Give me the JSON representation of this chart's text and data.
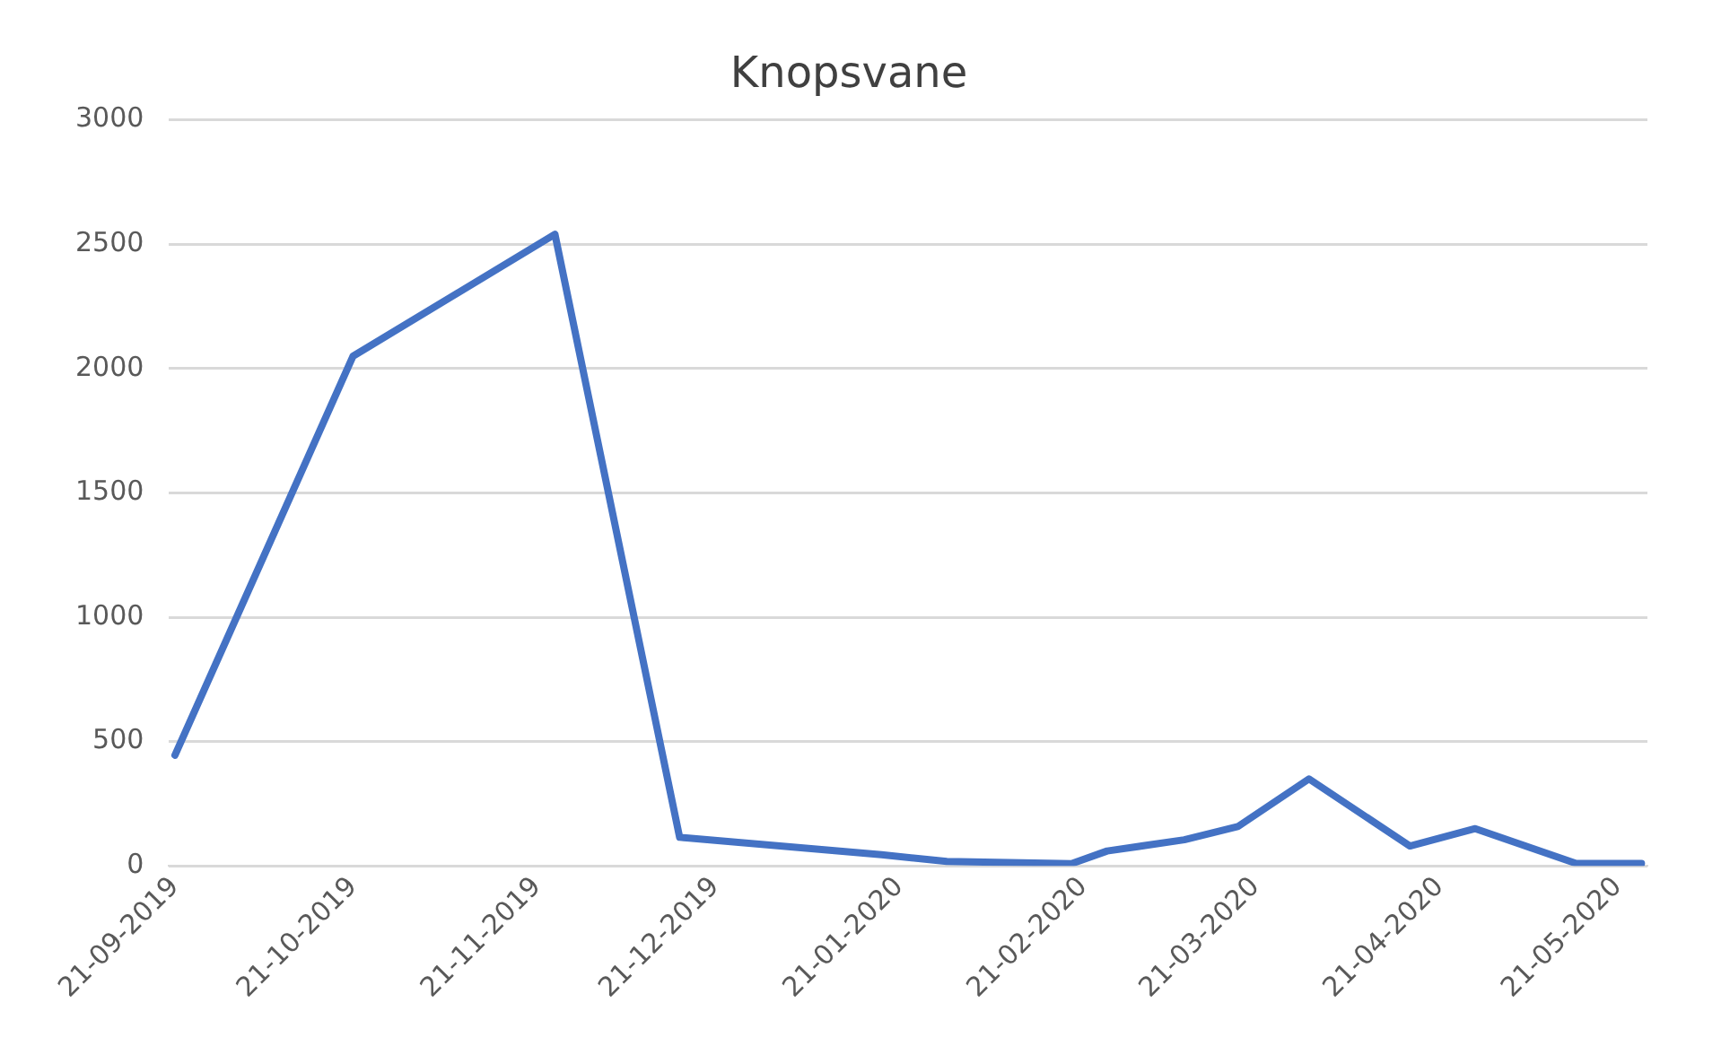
{
  "chart_data": {
    "type": "line",
    "title": "Knopsvane",
    "x": [
      "2019-09-21",
      "2019-10-21",
      "2019-11-24",
      "2019-12-15",
      "2020-01-18",
      "2020-01-29",
      "2020-02-19",
      "2020-02-25",
      "2020-03-09",
      "2020-03-18",
      "2020-03-30",
      "2020-04-16",
      "2020-04-27",
      "2020-05-14",
      "2020-05-25"
    ],
    "series": [
      {
        "color": "#4472c4",
        "values": [
          445,
          2050,
          2540,
          115,
          45,
          18,
          9,
          60,
          105,
          158,
          350,
          80,
          150,
          10,
          10
        ]
      }
    ],
    "xlim": [
      "2019-09-20",
      "2020-05-26"
    ],
    "xticks": [
      {
        "value": "2019-09-21",
        "label": "21-09-2019"
      },
      {
        "value": "2019-10-21",
        "label": "21-10-2019"
      },
      {
        "value": "2019-11-21",
        "label": "21-11-2019"
      },
      {
        "value": "2019-12-21",
        "label": "21-12-2019"
      },
      {
        "value": "2020-01-21",
        "label": "21-01-2020"
      },
      {
        "value": "2020-02-21",
        "label": "21-02-2020"
      },
      {
        "value": "2020-03-21",
        "label": "21-03-2020"
      },
      {
        "value": "2020-04-21",
        "label": "21-04-2020"
      },
      {
        "value": "2020-05-21",
        "label": "21-05-2020"
      }
    ],
    "ylim": [
      0,
      3000
    ],
    "yticks": [
      0,
      500,
      1000,
      1500,
      2000,
      2500,
      3000
    ],
    "grid": "y",
    "legend": false,
    "marker": "none",
    "line_style": "solid"
  }
}
